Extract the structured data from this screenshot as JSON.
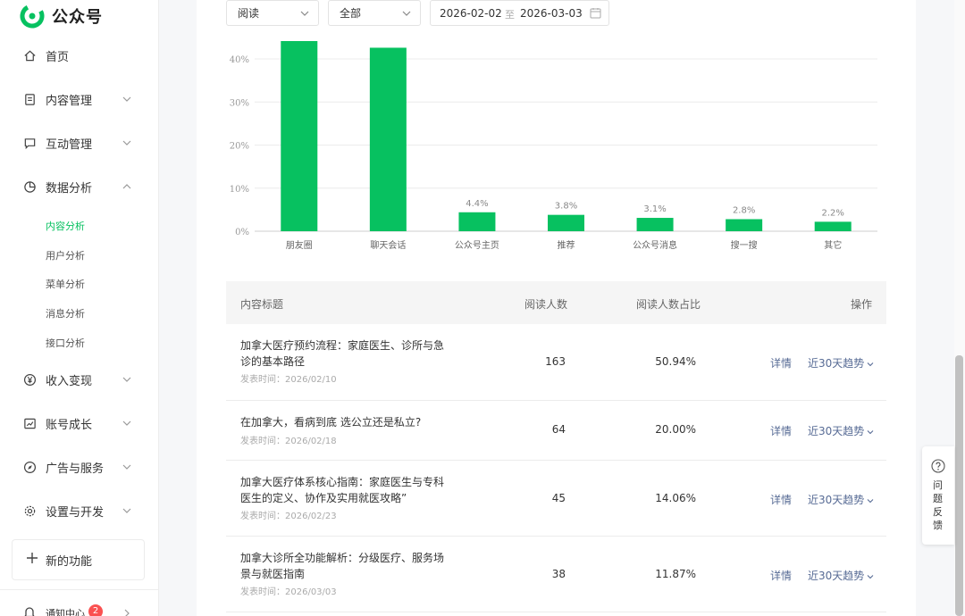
{
  "app": {
    "name": "公众号"
  },
  "sidebar": {
    "items": [
      {
        "label": "首页",
        "icon": "home-icon"
      },
      {
        "label": "内容管理",
        "icon": "document-icon"
      },
      {
        "label": "互动管理",
        "icon": "message-icon"
      },
      {
        "label": "数据分析",
        "icon": "chart-pie-icon",
        "expanded": true
      },
      {
        "label": "收入变现",
        "icon": "yen-icon"
      },
      {
        "label": "账号成长",
        "icon": "growth-icon"
      },
      {
        "label": "广告与服务",
        "icon": "compass-icon"
      },
      {
        "label": "设置与开发",
        "icon": "gear-icon"
      }
    ],
    "sub_items": [
      {
        "label": "内容分析",
        "active": true
      },
      {
        "label": "用户分析"
      },
      {
        "label": "菜单分析"
      },
      {
        "label": "消息分析"
      },
      {
        "label": "接口分析"
      }
    ],
    "new_feature": "新的功能",
    "notify": {
      "label": "通知中心",
      "badge": "2"
    }
  },
  "filters": {
    "metric": "阅读",
    "scope": "全部",
    "date_start": "2026-02-02",
    "date_sep": "至",
    "date_end": "2026-03-03"
  },
  "chart_data": {
    "type": "bar",
    "categories": [
      "朋友圈",
      "聊天会话",
      "公众号主页",
      "推荐",
      "公众号消息",
      "搜一搜",
      "其它"
    ],
    "values": [
      44.2,
      42.6,
      4.4,
      3.8,
      3.1,
      2.8,
      2.2
    ],
    "value_labels": [
      "",
      "",
      "4.4%",
      "3.8%",
      "3.1%",
      "2.8%",
      "2.2%"
    ],
    "y_ticks": [
      "0%",
      "10%",
      "20%",
      "30%",
      "40%"
    ],
    "ylim": [
      0,
      40
    ],
    "grid": true,
    "color": "#07c160"
  },
  "table": {
    "headers": {
      "title": "内容标题",
      "readers": "阅读人数",
      "ratio": "阅读人数占比",
      "action": "操作"
    },
    "rows": [
      {
        "title": "加拿大医疗预约流程：家庭医生、诊所与急诊的基本路径",
        "pub": "发表时间：2026/02/10",
        "readers": "163",
        "ratio": "50.94%",
        "detail": "详情",
        "trend": "近30天趋势"
      },
      {
        "title": "在加拿大，看病到底 选公立还是私立?",
        "pub": "发表时间：2026/02/18",
        "readers": "64",
        "ratio": "20.00%",
        "detail": "详情",
        "trend": "近30天趋势"
      },
      {
        "title": "加拿大医疗体系核心指南：家庭医生与专科医生的定义、协作及实用就医攻略”",
        "pub": "发表时间：2026/02/23",
        "readers": "45",
        "ratio": "14.06%",
        "detail": "详情",
        "trend": "近30天趋势"
      },
      {
        "title": "加拿大诊所全功能解析：分级医疗、服务场景与就医指南",
        "pub": "发表时间：2026/03/03",
        "readers": "38",
        "ratio": "11.87%",
        "detail": "详情",
        "trend": "近30天趋势"
      }
    ]
  },
  "feedback": {
    "label": "问题反馈"
  }
}
